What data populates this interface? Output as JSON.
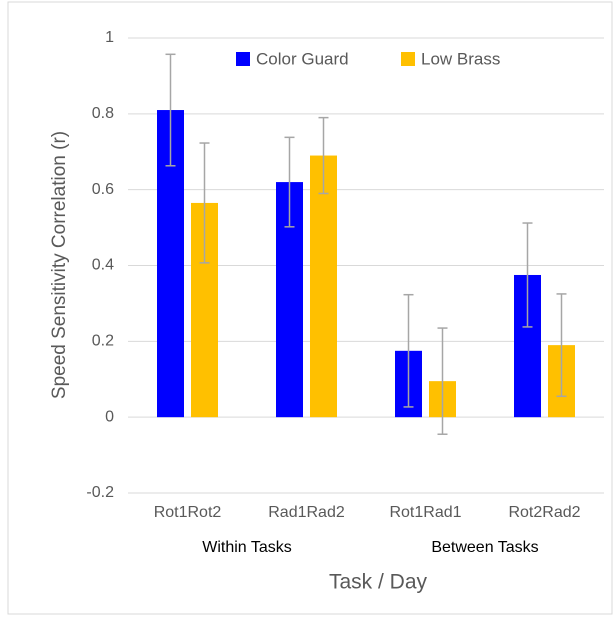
{
  "chart_data": {
    "type": "bar",
    "x_label": "Task / Day",
    "y_label": "Speed Sensitivity Correlation (r)",
    "categories": [
      "Rot1Rot2",
      "Rad1Rad2",
      "Rot1Rad1",
      "Rot2Rad2"
    ],
    "annotations": [
      "Within Tasks",
      "Between Tasks"
    ],
    "series": [
      {
        "name": "Color Guard",
        "color": "#0000ff",
        "values": [
          0.81,
          0.62,
          0.175,
          0.375
        ],
        "errors": [
          0.147,
          0.118,
          0.148,
          0.137
        ]
      },
      {
        "name": "Low Brass",
        "color": "#ffc000",
        "values": [
          0.565,
          0.69,
          0.095,
          0.19
        ],
        "errors": [
          0.158,
          0.1,
          0.14,
          0.135
        ]
      }
    ],
    "ylim": [
      -0.2,
      1
    ],
    "yticks": [
      -0.2,
      0,
      0.2,
      0.4,
      0.6,
      0.8,
      1
    ],
    "grid": true,
    "legend": "top"
  }
}
